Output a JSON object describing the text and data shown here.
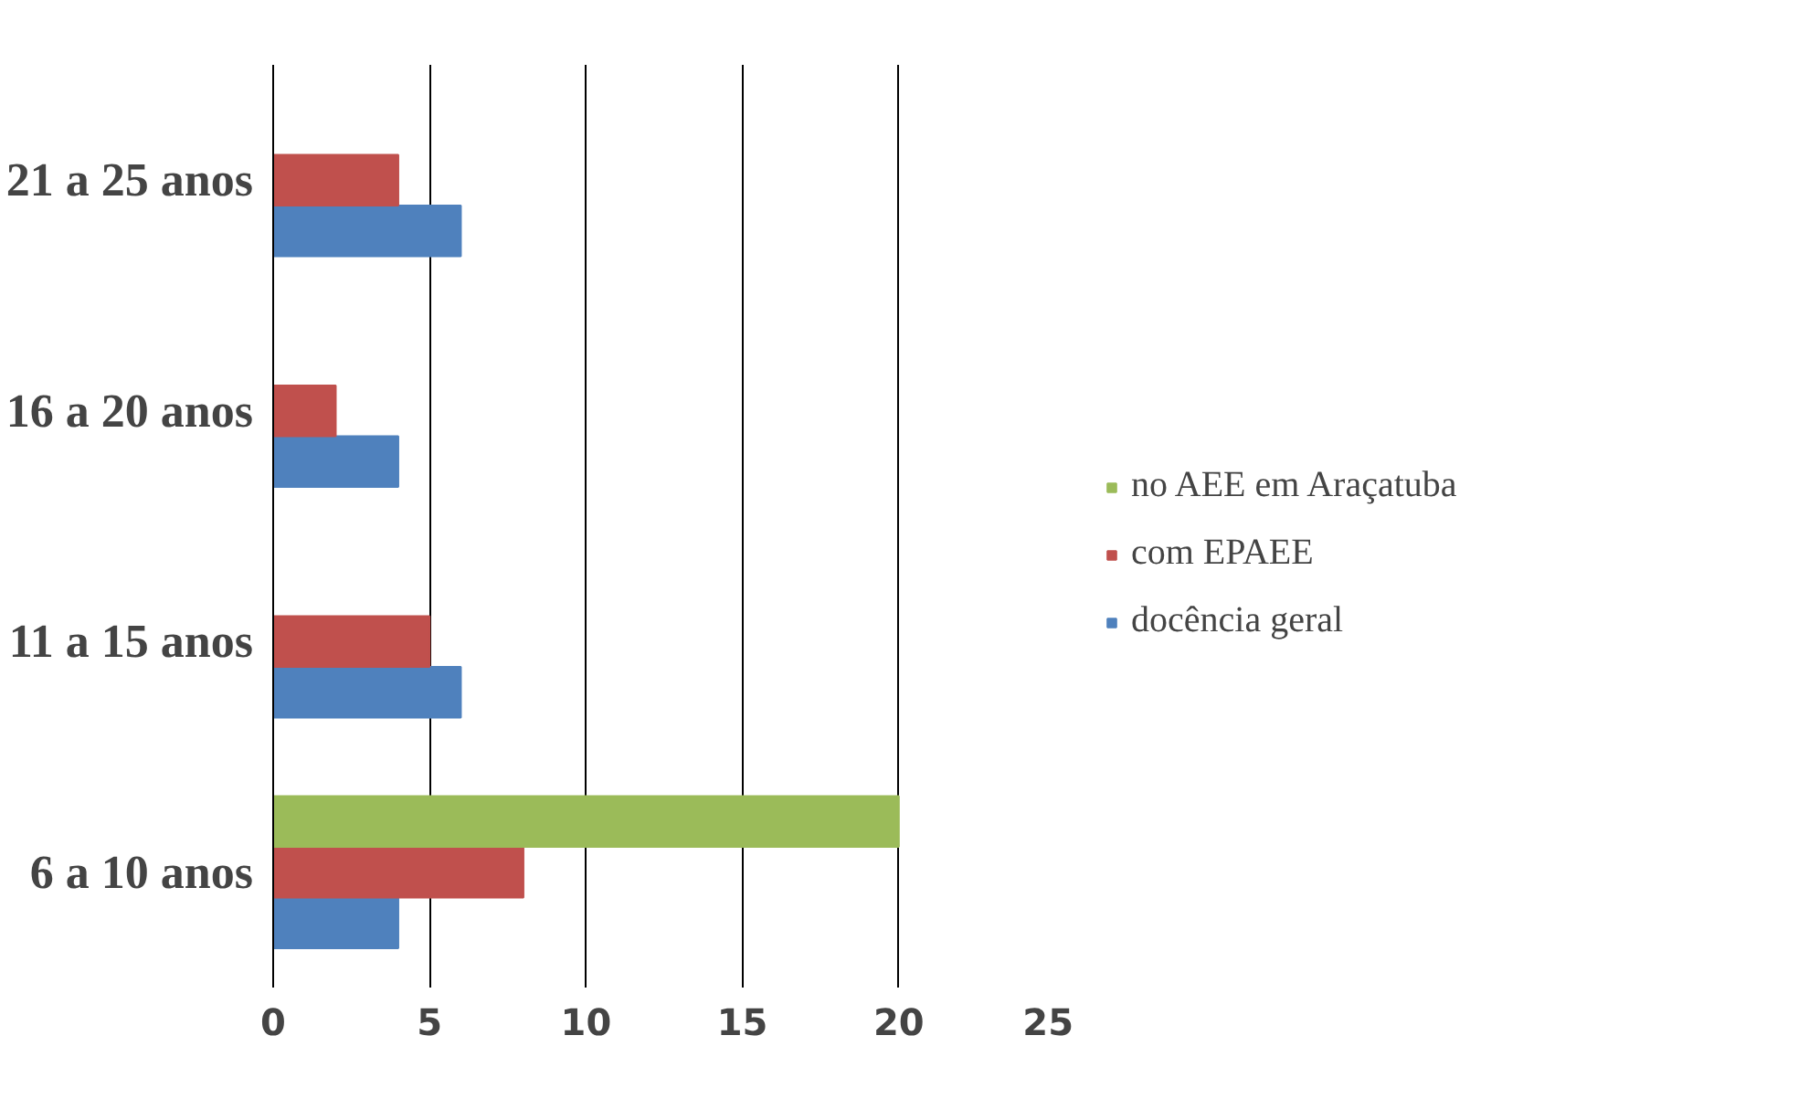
{
  "chart_data": {
    "type": "bar",
    "orientation": "horizontal",
    "categories": [
      "21 a 25 anos",
      "16 a 20 anos",
      "11 a 15 anos",
      "6 a 10 anos"
    ],
    "series": [
      {
        "name": "docência geral",
        "color": "#4f81bd",
        "values": [
          6,
          4,
          6,
          4
        ]
      },
      {
        "name": "com EPAEE",
        "color": "#c0504d",
        "values": [
          4,
          2,
          5,
          8
        ]
      },
      {
        "name": "no AEE em Araçatuba",
        "color": "#9bbb59",
        "values": [
          null,
          null,
          null,
          20
        ]
      }
    ],
    "xlim": [
      0,
      25
    ],
    "xticks": [
      0,
      5,
      10,
      15,
      20,
      25
    ],
    "grid": "x",
    "legend": "right"
  }
}
